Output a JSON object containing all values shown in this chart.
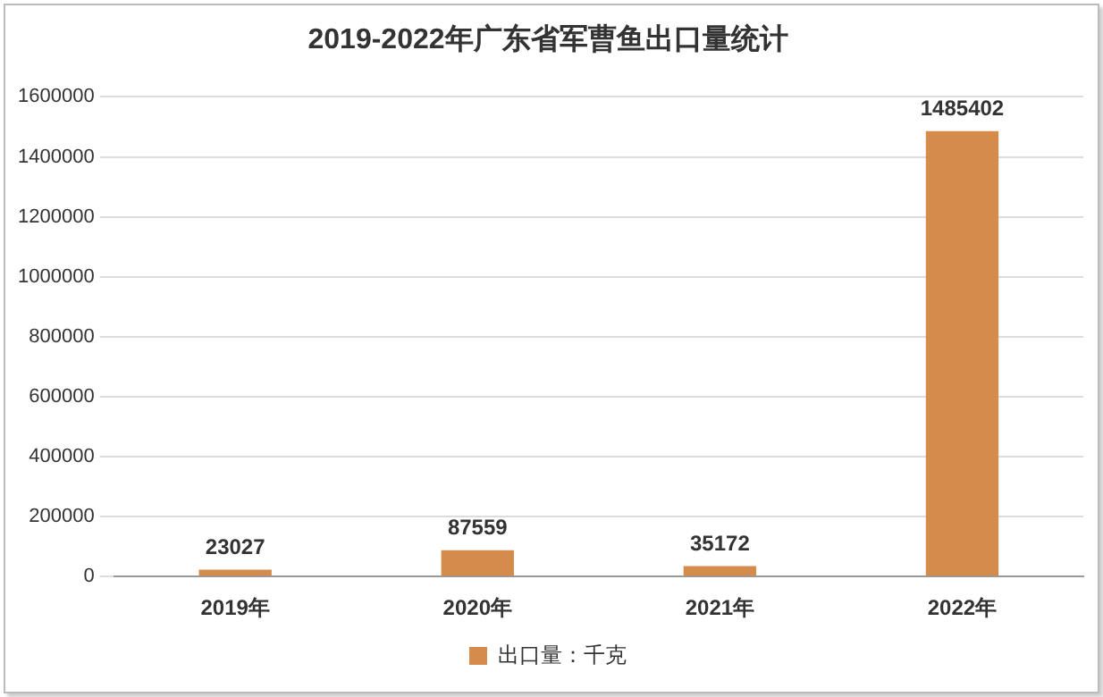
{
  "chart_data": {
    "type": "bar",
    "title": "2019-2022年广东省军曹鱼出口量统计",
    "categories": [
      "2019年",
      "2020年",
      "2021年",
      "2022年"
    ],
    "series": [
      {
        "name": "出口量：千克",
        "color": "#d58b4c",
        "values": [
          23027,
          87559,
          35172,
          1485402
        ]
      }
    ],
    "ylim": [
      0,
      1600000
    ],
    "yticks": [
      0,
      200000,
      400000,
      600000,
      800000,
      1000000,
      1200000,
      1400000,
      1600000
    ],
    "grid": "y",
    "legend": "bottom",
    "data_labels": true
  }
}
